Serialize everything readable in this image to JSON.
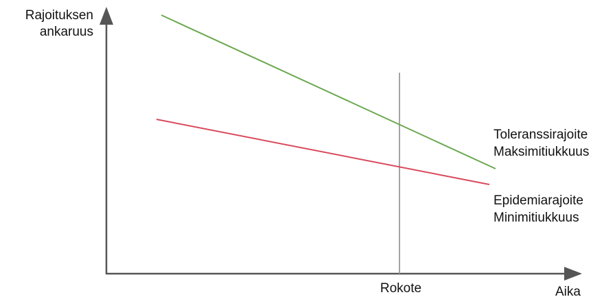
{
  "labels": {
    "y_axis_line1": "Rajoituksen",
    "y_axis_line2": "ankaruus",
    "x_axis": "Aika",
    "vaccine_marker": "Rokote",
    "upper_line_1": "Toleranssirajoite",
    "upper_line_2": "Maksimitiukkuus",
    "lower_line_1": "Epidemiarajoite",
    "lower_line_2": "Minimitiukkuus"
  },
  "colors": {
    "axis": "#555555",
    "marker": "#999999",
    "upper_line": "#6aa84f",
    "lower_line": "#d9485a"
  }
}
